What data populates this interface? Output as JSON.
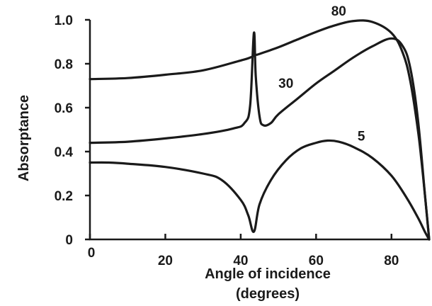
{
  "chart_data": {
    "type": "line",
    "xlabel_line1": "Angle of incidence",
    "xlabel_line2": "(degrees)",
    "ylabel": "Absorptance",
    "xlim": [
      0,
      90
    ],
    "ylim": [
      0,
      1.0
    ],
    "x_ticks": [
      0,
      20,
      40,
      60,
      80
    ],
    "x_tick_labels": [
      "0",
      "20",
      "40",
      "60",
      "80"
    ],
    "y_ticks": [
      0,
      0.2,
      0.4,
      0.6,
      0.8,
      1.0
    ],
    "y_tick_labels": [
      "0",
      "0.2",
      "0.4",
      "0.6",
      "0.8",
      "1.0"
    ],
    "grid": false,
    "series": [
      {
        "name": "80",
        "x": [
          0,
          10,
          20,
          30,
          40,
          42,
          43,
          44,
          45,
          50,
          55,
          60,
          65,
          70,
          75,
          80,
          83,
          85,
          87,
          88,
          89,
          90
        ],
        "y": [
          0.73,
          0.735,
          0.75,
          0.77,
          0.815,
          0.825,
          0.832,
          0.84,
          0.845,
          0.875,
          0.91,
          0.945,
          0.975,
          0.995,
          0.99,
          0.94,
          0.85,
          0.72,
          0.5,
          0.35,
          0.18,
          0
        ]
      },
      {
        "name": "30",
        "x": [
          0,
          10,
          20,
          30,
          38,
          41,
          42.5,
          43.5,
          44,
          45,
          46,
          48,
          50,
          55,
          60,
          65,
          70,
          75,
          80,
          83,
          85,
          87,
          89,
          90
        ],
        "y": [
          0.44,
          0.445,
          0.46,
          0.48,
          0.505,
          0.53,
          0.61,
          0.94,
          0.74,
          0.56,
          0.52,
          0.53,
          0.57,
          0.64,
          0.71,
          0.77,
          0.83,
          0.88,
          0.915,
          0.88,
          0.78,
          0.55,
          0.18,
          0
        ]
      },
      {
        "name": "5",
        "x": [
          0,
          5,
          10,
          20,
          30,
          35,
          40,
          42,
          43.5,
          45,
          48,
          52,
          56,
          60,
          63,
          66,
          70,
          75,
          80,
          84,
          87,
          89,
          90
        ],
        "y": [
          0.35,
          0.35,
          0.345,
          0.33,
          0.3,
          0.27,
          0.18,
          0.11,
          0.035,
          0.16,
          0.27,
          0.36,
          0.415,
          0.44,
          0.45,
          0.445,
          0.42,
          0.37,
          0.29,
          0.19,
          0.1,
          0.03,
          0
        ]
      }
    ]
  }
}
